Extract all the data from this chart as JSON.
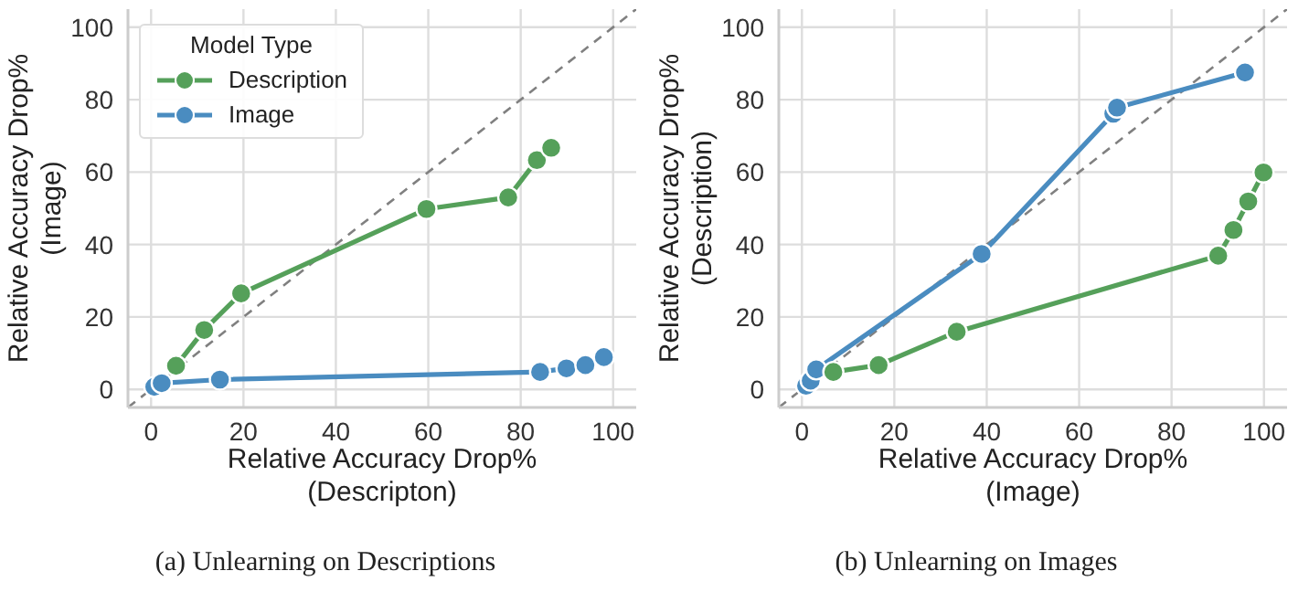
{
  "chart_data": [
    {
      "type": "line",
      "xlabel": "Relative Accuracy Drop%\n(Descripton)",
      "ylabel": "Relative Accuracy Drop%\n(Image)",
      "legend_title": "Model Type",
      "legend": "top left",
      "grid": true,
      "marker": "circle",
      "line_style": "solid",
      "xlim": [
        -5,
        105
      ],
      "ylim": [
        -5,
        105
      ],
      "xticks": [
        0,
        20,
        40,
        60,
        80,
        100
      ],
      "yticks": [
        0,
        20,
        40,
        60,
        80,
        100
      ],
      "annotations": [
        "(a) Unlearning on Descriptions"
      ],
      "series": [
        {
          "name": "Description",
          "color": "#55a05a",
          "x": [
            5.4,
            11.5,
            19.5,
            59.6,
            77.3,
            83.5,
            86.6
          ],
          "values": [
            6.5,
            16.4,
            26.5,
            49.8,
            53,
            63.3,
            66.7
          ]
        },
        {
          "name": "Image",
          "color": "#4a8cc0",
          "x": [
            0.7,
            2.3,
            14.9,
            84.2,
            89.9,
            94,
            98
          ],
          "values": [
            0.7,
            1.7,
            2.7,
            4.8,
            5.8,
            6.7,
            8.9
          ]
        },
        {
          "type": "line",
          "color": "#808080",
          "marker": "none",
          "line_style": "dashed",
          "x": [
            -5,
            105
          ],
          "values": [
            -5,
            105
          ]
        }
      ]
    },
    {
      "type": "line",
      "xlabel": "Relative Accuracy Drop%\n(Image)",
      "ylabel": "Relative Accuracy Drop%\n(Description)",
      "grid": true,
      "marker": "circle",
      "line_style": "solid",
      "xlim": [
        -5,
        105
      ],
      "ylim": [
        -5,
        105
      ],
      "xticks": [
        0,
        20,
        40,
        60,
        80,
        100
      ],
      "yticks": [
        0,
        20,
        40,
        60,
        80,
        100
      ],
      "annotations": [
        "(b) Unlearning on Images"
      ],
      "series": [
        {
          "color": "#55a05a",
          "x": [
            6.8,
            16.6,
            33.5,
            90.1,
            93.4,
            96.6,
            99.9
          ],
          "values": [
            4.8,
            6.7,
            15.9,
            36.9,
            44,
            51.9,
            59.9
          ]
        },
        {
          "color": "#4a8cc0",
          "x": [
            0.9,
            1.9,
            3.1,
            38.9,
            67.4,
            68.2,
            95.9
          ],
          "values": [
            1,
            2.4,
            5.5,
            37.4,
            76.1,
            77.8,
            87.5
          ]
        },
        {
          "type": "line",
          "color": "#808080",
          "marker": "none",
          "line_style": "dashed",
          "x": [
            -5,
            105
          ],
          "values": [
            -5,
            105
          ]
        }
      ]
    }
  ]
}
